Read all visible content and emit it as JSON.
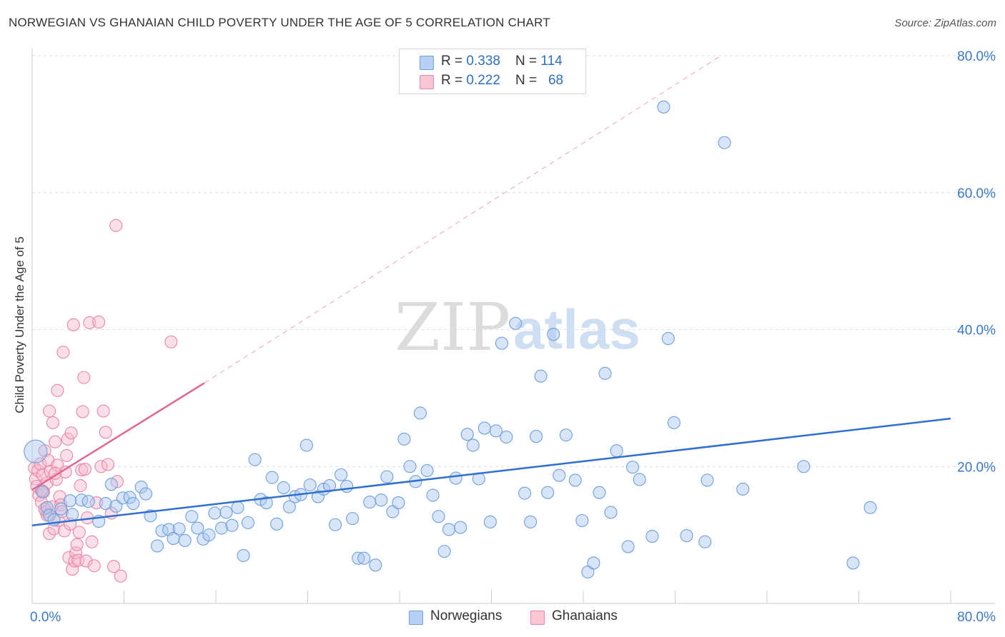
{
  "title": "NORWEGIAN VS GHANAIAN CHILD POVERTY UNDER THE AGE OF 5 CORRELATION CHART",
  "source": "Source: ZipAtlas.com",
  "watermark": {
    "zip": "ZIP",
    "atlas": "atlas"
  },
  "colors": {
    "blue_fill": "#a9c6f0",
    "blue_stroke": "#6e9fdc",
    "blue_line": "#2f6fcf",
    "pink_fill": "#f6b8cb",
    "pink_stroke": "#e888a6",
    "pink_line": "#e06890",
    "grid": "#dddddd",
    "axis_text": "#3a78c8"
  },
  "legend_top": {
    "rows": [
      {
        "r_label": "R = ",
        "r_value": "0.338",
        "n_label": "N = ",
        "n_value": "114"
      },
      {
        "r_label": "R = ",
        "r_value": "0.222",
        "n_label": "N = ",
        "n_value": "68"
      }
    ]
  },
  "legend_bottom": {
    "items": [
      "Norwegians",
      "Ghanaians"
    ]
  },
  "chart_data": {
    "type": "scatter",
    "title": "NORWEGIAN VS GHANAIAN CHILD POVERTY UNDER THE AGE OF 5 CORRELATION CHART",
    "xlabel": "",
    "ylabel": "Child Poverty Under the Age of 5",
    "xlim": [
      0,
      80
    ],
    "ylim": [
      0,
      80
    ],
    "x_tick_labels": [
      "0.0%",
      "80.0%"
    ],
    "y_tick_labels": [
      "20.0%",
      "40.0%",
      "60.0%",
      "80.0%"
    ],
    "y_ticks": [
      20,
      40,
      60,
      80
    ],
    "x_minor_ticks": [
      0,
      8,
      16,
      24,
      32,
      40,
      48,
      56,
      64,
      72,
      80
    ],
    "grid": true,
    "legend_position": "top-center",
    "series": [
      {
        "name": "Norwegians",
        "R": 0.338,
        "N": 114,
        "trend": {
          "x": [
            0,
            80
          ],
          "y": [
            11.4,
            27.0
          ],
          "style": "solid"
        },
        "points": [
          [
            0.3,
            22.2
          ],
          [
            0.9,
            16.3
          ],
          [
            1.3,
            14.0
          ],
          [
            1.5,
            12.9
          ],
          [
            1.9,
            12.2
          ],
          [
            2.5,
            13.8
          ],
          [
            3.3,
            15.0
          ],
          [
            3.5,
            13.0
          ],
          [
            4.3,
            15.1
          ],
          [
            4.9,
            14.9
          ],
          [
            5.8,
            12.0
          ],
          [
            6.4,
            14.6
          ],
          [
            6.9,
            17.4
          ],
          [
            7.3,
            14.2
          ],
          [
            7.9,
            15.4
          ],
          [
            8.5,
            15.5
          ],
          [
            8.8,
            14.6
          ],
          [
            9.5,
            17.0
          ],
          [
            9.9,
            16.0
          ],
          [
            10.3,
            12.8
          ],
          [
            10.9,
            8.4
          ],
          [
            11.3,
            10.6
          ],
          [
            11.9,
            10.8
          ],
          [
            12.3,
            9.5
          ],
          [
            12.8,
            10.9
          ],
          [
            13.3,
            9.2
          ],
          [
            13.9,
            12.7
          ],
          [
            14.4,
            11.0
          ],
          [
            14.9,
            9.4
          ],
          [
            15.4,
            10.0
          ],
          [
            15.9,
            13.2
          ],
          [
            16.5,
            11.0
          ],
          [
            16.9,
            13.3
          ],
          [
            17.4,
            11.4
          ],
          [
            17.9,
            14.0
          ],
          [
            18.4,
            7.0
          ],
          [
            18.8,
            11.8
          ],
          [
            19.4,
            21.0
          ],
          [
            19.9,
            15.2
          ],
          [
            20.4,
            14.7
          ],
          [
            20.9,
            18.4
          ],
          [
            21.3,
            11.6
          ],
          [
            21.9,
            16.9
          ],
          [
            22.4,
            14.1
          ],
          [
            22.9,
            15.6
          ],
          [
            23.4,
            15.9
          ],
          [
            23.9,
            23.1
          ],
          [
            24.2,
            17.3
          ],
          [
            24.9,
            15.6
          ],
          [
            25.4,
            16.7
          ],
          [
            25.9,
            17.2
          ],
          [
            26.4,
            11.5
          ],
          [
            26.9,
            18.8
          ],
          [
            27.4,
            17.1
          ],
          [
            27.9,
            12.4
          ],
          [
            28.4,
            6.6
          ],
          [
            28.9,
            6.6
          ],
          [
            29.4,
            14.8
          ],
          [
            29.9,
            5.6
          ],
          [
            30.4,
            15.1
          ],
          [
            30.9,
            18.5
          ],
          [
            31.4,
            13.4
          ],
          [
            31.9,
            14.7
          ],
          [
            32.4,
            24.0
          ],
          [
            32.9,
            20.0
          ],
          [
            33.4,
            17.8
          ],
          [
            33.8,
            27.8
          ],
          [
            34.4,
            19.4
          ],
          [
            34.9,
            15.8
          ],
          [
            35.4,
            12.7
          ],
          [
            35.9,
            7.6
          ],
          [
            36.3,
            10.8
          ],
          [
            36.9,
            18.3
          ],
          [
            37.3,
            11.1
          ],
          [
            37.9,
            24.7
          ],
          [
            38.4,
            23.1
          ],
          [
            38.9,
            18.2
          ],
          [
            39.4,
            25.6
          ],
          [
            39.9,
            11.9
          ],
          [
            40.4,
            25.2
          ],
          [
            40.9,
            38.0
          ],
          [
            41.3,
            24.3
          ],
          [
            42.1,
            40.9
          ],
          [
            42.9,
            16.1
          ],
          [
            43.4,
            11.9
          ],
          [
            43.9,
            24.4
          ],
          [
            44.3,
            33.2
          ],
          [
            44.9,
            16.2
          ],
          [
            45.4,
            39.3
          ],
          [
            45.9,
            18.7
          ],
          [
            46.5,
            24.6
          ],
          [
            47.3,
            18.0
          ],
          [
            47.9,
            12.1
          ],
          [
            48.4,
            4.6
          ],
          [
            48.9,
            5.9
          ],
          [
            49.4,
            16.2
          ],
          [
            49.9,
            33.6
          ],
          [
            50.4,
            13.3
          ],
          [
            50.9,
            22.3
          ],
          [
            51.9,
            8.3
          ],
          [
            52.3,
            19.9
          ],
          [
            52.9,
            18.1
          ],
          [
            54.0,
            9.8
          ],
          [
            55.0,
            72.5
          ],
          [
            55.4,
            38.7
          ],
          [
            55.9,
            26.4
          ],
          [
            57.0,
            9.9
          ],
          [
            58.6,
            9.0
          ],
          [
            58.8,
            18.0
          ],
          [
            60.3,
            67.3
          ],
          [
            61.9,
            16.7
          ],
          [
            67.2,
            20.0
          ],
          [
            71.5,
            5.9
          ],
          [
            73.0,
            14.0
          ]
        ]
      },
      {
        "name": "Ghanaians",
        "R": 0.222,
        "N": 68,
        "trend": {
          "x": [
            0,
            15
          ],
          "y": [
            16.6,
            32.2
          ],
          "style": "solid",
          "extension": {
            "x": [
              15,
              60
            ],
            "y": [
              32.2,
              80
            ],
            "style": "dashed"
          }
        },
        "points": [
          [
            0.2,
            19.8
          ],
          [
            0.3,
            18.2
          ],
          [
            0.4,
            17.1
          ],
          [
            0.5,
            19.4
          ],
          [
            0.6,
            15.8
          ],
          [
            0.7,
            20.4
          ],
          [
            0.8,
            14.8
          ],
          [
            0.9,
            18.8
          ],
          [
            1.0,
            16.3
          ],
          [
            1.1,
            22.3
          ],
          [
            1.2,
            13.4
          ],
          [
            1.3,
            17.6
          ],
          [
            1.4,
            20.9
          ],
          [
            1.5,
            10.2
          ],
          [
            1.6,
            19.3
          ],
          [
            1.7,
            14.1
          ],
          [
            1.8,
            26.4
          ],
          [
            1.9,
            10.9
          ],
          [
            2.0,
            23.6
          ],
          [
            2.1,
            18.1
          ],
          [
            2.2,
            20.2
          ],
          [
            2.3,
            12.1
          ],
          [
            2.4,
            15.6
          ],
          [
            2.5,
            14.4
          ],
          [
            2.6,
            13.4
          ],
          [
            2.7,
            36.7
          ],
          [
            2.8,
            10.6
          ],
          [
            2.9,
            19.2
          ],
          [
            3.0,
            21.6
          ],
          [
            3.1,
            24.0
          ],
          [
            3.2,
            6.7
          ],
          [
            3.3,
            11.6
          ],
          [
            3.4,
            24.9
          ],
          [
            3.5,
            5.0
          ],
          [
            3.6,
            40.7
          ],
          [
            3.7,
            6.2
          ],
          [
            3.8,
            7.4
          ],
          [
            3.9,
            8.6
          ],
          [
            4.0,
            6.3
          ],
          [
            4.1,
            10.4
          ],
          [
            4.2,
            17.2
          ],
          [
            4.3,
            19.5
          ],
          [
            4.4,
            28.0
          ],
          [
            4.5,
            33.0
          ],
          [
            4.6,
            19.6
          ],
          [
            4.7,
            6.2
          ],
          [
            4.8,
            12.5
          ],
          [
            5.0,
            41.0
          ],
          [
            5.2,
            9.0
          ],
          [
            5.4,
            5.5
          ],
          [
            5.6,
            14.7
          ],
          [
            5.8,
            41.1
          ],
          [
            6.0,
            20.0
          ],
          [
            6.2,
            28.1
          ],
          [
            6.4,
            25.0
          ],
          [
            6.6,
            20.3
          ],
          [
            6.9,
            13.2
          ],
          [
            7.1,
            5.4
          ],
          [
            7.4,
            17.8
          ],
          [
            7.7,
            4.0
          ],
          [
            1.3,
            12.9
          ],
          [
            2.2,
            31.1
          ],
          [
            1.5,
            28.1
          ],
          [
            0.8,
            16.5
          ],
          [
            1.1,
            13.8
          ],
          [
            2.0,
            19.0
          ],
          [
            7.3,
            55.2
          ],
          [
            12.1,
            38.2
          ]
        ]
      }
    ]
  }
}
